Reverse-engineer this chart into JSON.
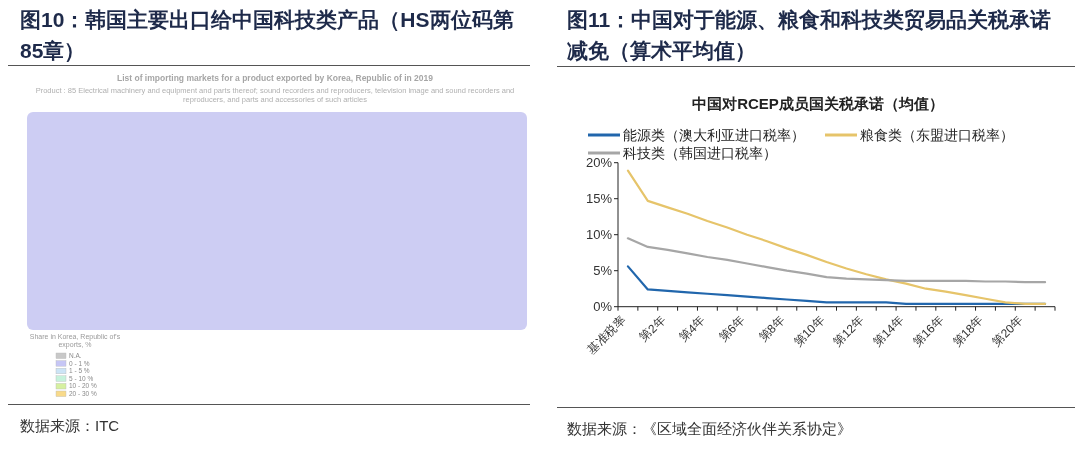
{
  "chart_data": [
    {
      "type": "other",
      "title": "图10：韩国主要出口给中国科技类产品（HS两位码第85章）",
      "subtitle": "List of importing markets for a product exported by Korea, Republic of in 2019",
      "annotations": [
        "Product : 85 Electrical machinery and equipment and parts thereof; sound recorders and reproducers, television image and sound recorders and reproducers, and parts and accessories of such articles",
        "Share in Korea, Republic of's exports, %",
        "N.A.",
        "0 - 1 %",
        "1 - 5 %",
        "5 - 10 %",
        "10 - 20 %",
        "20 - 30 %",
        "数据来源：ITC"
      ]
    },
    {
      "type": "line",
      "title": "图11：中国对于能源、粮食和科技类贸易品关税承诺减免（算术平均值）",
      "subtitle": "中国对RCEP成员国关税承诺（均值）",
      "categories": [
        "基准税率",
        null,
        "第2年",
        null,
        "第4年",
        null,
        "第6年",
        null,
        "第8年",
        null,
        "第10年",
        null,
        "第12年",
        null,
        "第14年",
        null,
        "第16年",
        null,
        "第18年",
        null,
        "第20年",
        null
      ],
      "series": [
        {
          "name": "能源类（澳大利亚进口税率）",
          "color": "#2166ac",
          "values": [
            5.6,
            2.4,
            2.2,
            2.0,
            1.8,
            1.6,
            1.4,
            1.2,
            1.0,
            0.8,
            0.6,
            0.6,
            0.6,
            0.6,
            0.4,
            0.4,
            0.4,
            0.4,
            0.4,
            0.4,
            0.4,
            0.4
          ]
        },
        {
          "name": "粮食类（东盟进口税率）",
          "color": "#e6c46a",
          "values": [
            18.9,
            14.7,
            13.8,
            12.9,
            11.9,
            11.0,
            10.0,
            9.1,
            8.1,
            7.2,
            6.2,
            5.3,
            4.5,
            3.8,
            3.2,
            2.5,
            2.1,
            1.6,
            1.1,
            0.6,
            0.4,
            0.4
          ]
        },
        {
          "name": "科技类（韩国进口税率）",
          "color": "#a6a6a6",
          "values": [
            9.5,
            8.3,
            7.9,
            7.4,
            6.9,
            6.5,
            6.0,
            5.5,
            5.0,
            4.6,
            4.1,
            3.9,
            3.8,
            3.7,
            3.6,
            3.6,
            3.6,
            3.6,
            3.5,
            3.5,
            3.4,
            3.4
          ]
        }
      ],
      "ylim": [
        0,
        20
      ],
      "yticks": [
        {
          "value": 0,
          "label": "0%"
        },
        {
          "value": 5,
          "label": "5%"
        },
        {
          "value": 10,
          "label": "10%"
        },
        {
          "value": 15,
          "label": "15%"
        },
        {
          "value": 20,
          "label": "20%"
        }
      ],
      "legend": "top",
      "annotations": [
        "数据来源：《区域全面经济伙伴关系协定》"
      ]
    }
  ]
}
